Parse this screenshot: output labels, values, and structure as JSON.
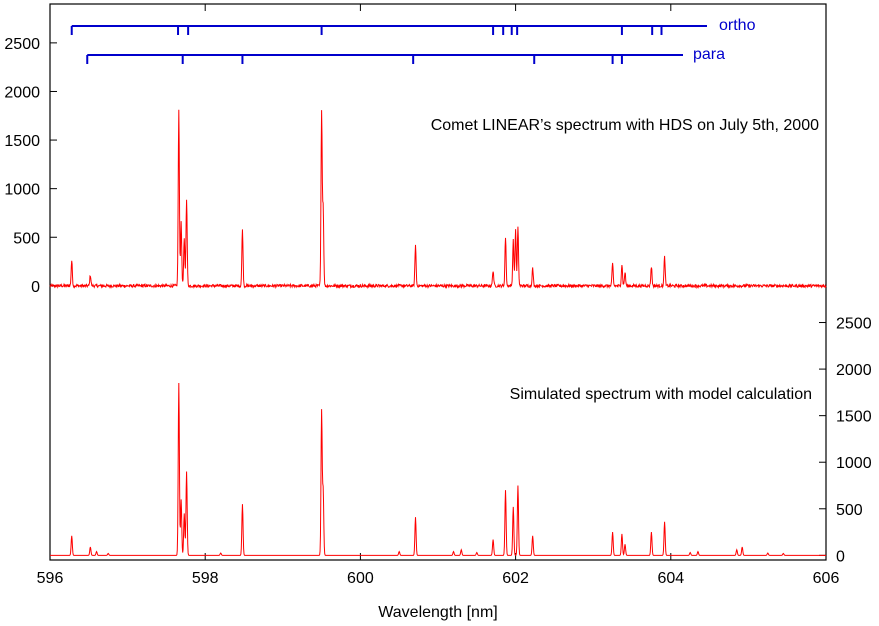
{
  "chart_data": {
    "type": "line",
    "xlabel": "Wavelength [nm]",
    "xlim": [
      596,
      606
    ],
    "x_ticks": [
      "596",
      "598",
      "600",
      "602",
      "604",
      "606"
    ],
    "grid": false,
    "colors": {
      "spectrum": "#ff0000",
      "line_markers": "#0000cc",
      "axes": "#000000"
    },
    "panels": [
      {
        "name": "observed",
        "annotation": "Comet LINEAR’s spectrum with HDS on July 5th, 2000",
        "y_axis_side": "left",
        "ylim": [
          -300,
          2900
        ],
        "y_ticks": [
          "0",
          "500",
          "1000",
          "1500",
          "2000",
          "2500"
        ],
        "noise_level": 15,
        "peaks": [
          [
            596.28,
            260
          ],
          [
            596.52,
            110
          ],
          [
            597.66,
            1800
          ],
          [
            597.69,
            650
          ],
          [
            597.73,
            480
          ],
          [
            597.76,
            900
          ],
          [
            598.48,
            580
          ],
          [
            599.5,
            1800
          ],
          [
            599.52,
            800
          ],
          [
            600.71,
            420
          ],
          [
            601.71,
            160
          ],
          [
            601.87,
            500
          ],
          [
            601.97,
            470
          ],
          [
            602.0,
            580
          ],
          [
            602.03,
            600
          ],
          [
            602.22,
            180
          ],
          [
            603.25,
            230
          ],
          [
            603.37,
            220
          ],
          [
            603.41,
            140
          ],
          [
            603.75,
            200
          ],
          [
            603.92,
            300
          ]
        ]
      },
      {
        "name": "simulated",
        "annotation": "Simulated spectrum with model calculation",
        "y_axis_side": "right",
        "ylim": [
          -50,
          3150
        ],
        "y_ticks": [
          "0",
          "500",
          "1000",
          "1500",
          "2000",
          "2500"
        ],
        "noise_level": 0,
        "peaks": [
          [
            596.28,
            210
          ],
          [
            596.52,
            90
          ],
          [
            596.6,
            40
          ],
          [
            596.75,
            20
          ],
          [
            597.66,
            1850
          ],
          [
            597.69,
            600
          ],
          [
            597.73,
            450
          ],
          [
            597.76,
            900
          ],
          [
            598.2,
            25
          ],
          [
            598.48,
            550
          ],
          [
            599.5,
            1550
          ],
          [
            599.52,
            700
          ],
          [
            600.5,
            40
          ],
          [
            600.71,
            410
          ],
          [
            601.2,
            40
          ],
          [
            601.3,
            60
          ],
          [
            601.5,
            30
          ],
          [
            601.71,
            170
          ],
          [
            601.87,
            700
          ],
          [
            601.97,
            520
          ],
          [
            602.03,
            750
          ],
          [
            602.22,
            210
          ],
          [
            603.25,
            250
          ],
          [
            603.37,
            230
          ],
          [
            603.41,
            120
          ],
          [
            603.75,
            250
          ],
          [
            603.92,
            360
          ],
          [
            604.25,
            30
          ],
          [
            604.35,
            40
          ],
          [
            604.85,
            60
          ],
          [
            604.92,
            90
          ],
          [
            605.25,
            25
          ],
          [
            605.45,
            20
          ]
        ]
      }
    ],
    "line_markers": [
      {
        "label": "ortho",
        "positions": [
          596.28,
          597.65,
          597.78,
          599.5,
          601.71,
          601.84,
          601.95,
          602.02,
          603.37,
          603.76,
          603.88
        ]
      },
      {
        "label": "para",
        "positions": [
          596.48,
          597.71,
          598.48,
          600.68,
          602.24,
          603.25,
          603.37
        ]
      }
    ]
  }
}
